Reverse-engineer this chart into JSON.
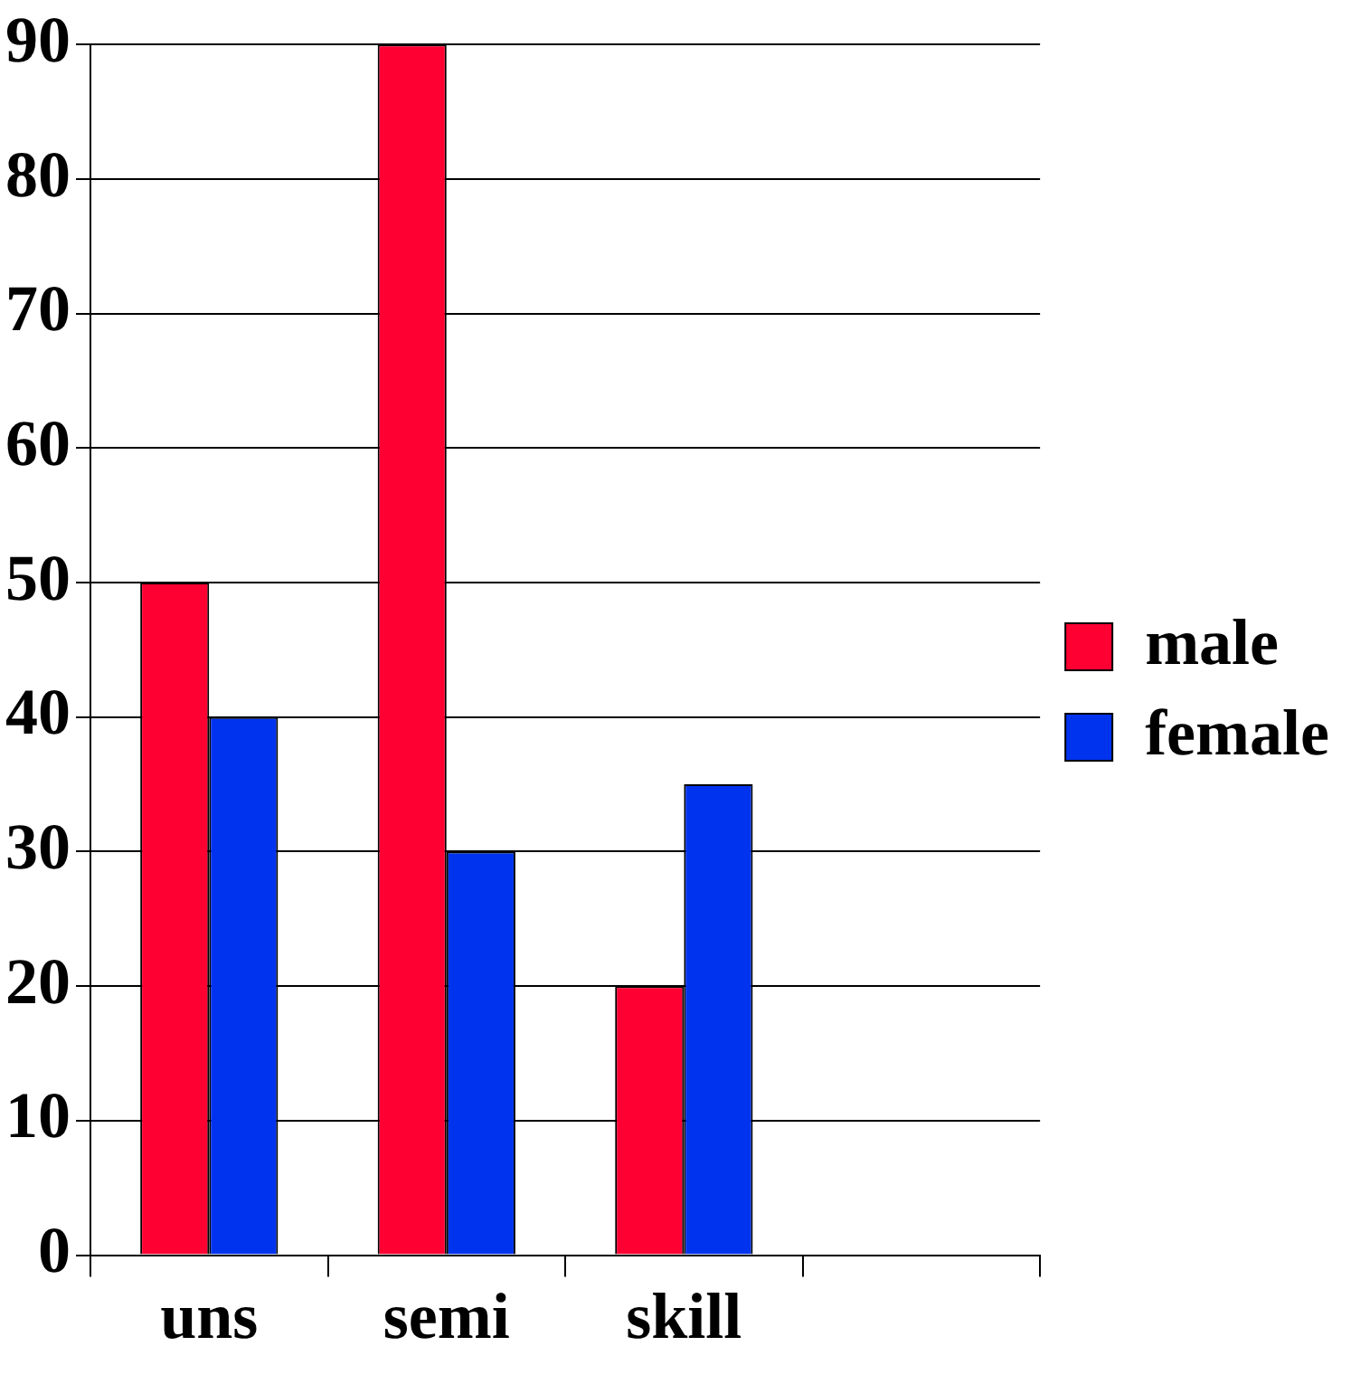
{
  "chart_data": {
    "type": "bar",
    "categories": [
      "uns",
      "semi",
      "skill",
      null
    ],
    "series": [
      {
        "name": "male",
        "color": "#ff0033",
        "values": [
          50,
          90,
          20,
          null
        ]
      },
      {
        "name": "female",
        "color": "#0033ee",
        "values": [
          40,
          30,
          35,
          null
        ]
      }
    ],
    "ylim": [
      0,
      90
    ],
    "yticks": [
      0,
      10,
      20,
      30,
      40,
      50,
      60,
      70,
      80,
      90
    ],
    "grid": "y",
    "legend": "right"
  }
}
